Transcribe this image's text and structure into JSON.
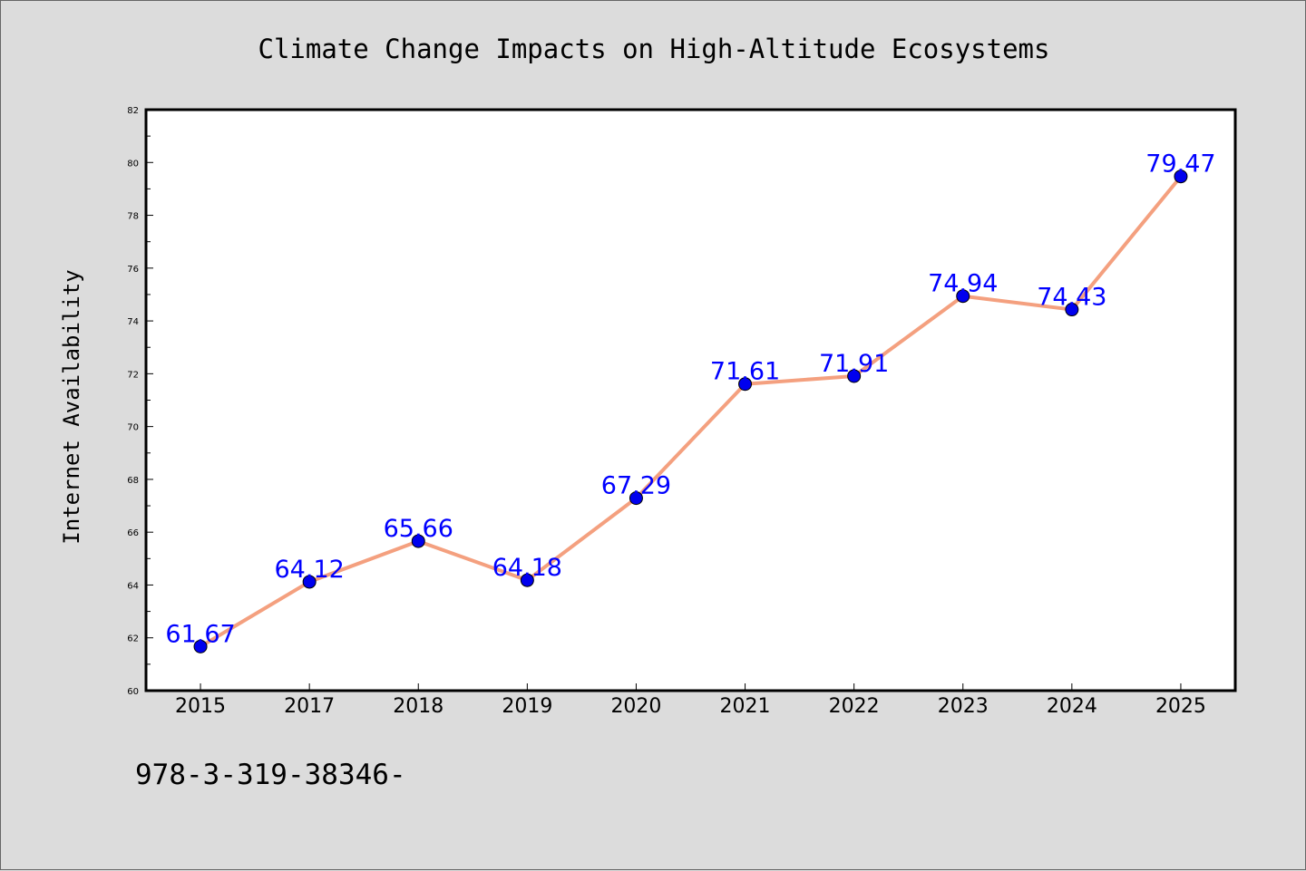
{
  "chart_data": {
    "type": "line",
    "title": "Climate Change Impacts on High-Altitude Ecosystems",
    "xlabel": "",
    "ylabel": "Internet Availability",
    "categories": [
      "2015",
      "2017",
      "2018",
      "2019",
      "2020",
      "2021",
      "2022",
      "2023",
      "2024",
      "2025"
    ],
    "series": [
      {
        "values": [
          61.67,
          64.12,
          65.66,
          64.18,
          67.29,
          71.61,
          71.91,
          74.94,
          74.43,
          79.47
        ],
        "data_labels": [
          "61.67",
          "64.12",
          "65.66",
          "64.18",
          "67.29",
          "71.61",
          "71.91",
          "74.94",
          "74.43",
          "79.47"
        ]
      }
    ],
    "ylim": [
      60,
      82
    ],
    "yticks": [
      60,
      62,
      64,
      66,
      68,
      70,
      72,
      74,
      76,
      78,
      80,
      82
    ],
    "grid": false,
    "legend": "none",
    "colors": {
      "line": "#f4a07f",
      "marker": "#0000ee",
      "data_label": "#0000ff",
      "background": "#dcdcdc",
      "plot_area": "#ffffff"
    }
  },
  "footer": {
    "code_text": "978-3-319-38346-"
  }
}
